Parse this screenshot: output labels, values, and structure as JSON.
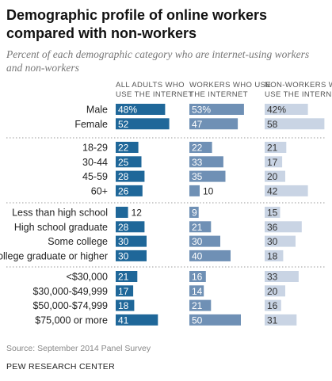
{
  "title": "Demographic profile of online workers compared with non-workers",
  "subtitle": "Percent of each demographic category who are internet-using workers and non-workers",
  "columns": [
    "ALL ADULTS WHO USE THE INTERNET",
    "WORKERS WHO USE THE INTERNET",
    "NON-WORKERS WHO USE THE INTERNET"
  ],
  "colors": {
    "all_adults": "#1f6799",
    "workers": "#6f90b5",
    "non_workers": "#c9d4e4"
  },
  "source": "Source: September 2014 Panel Survey",
  "org": "PEW RESEARCH CENTER",
  "chart_data": {
    "type": "bar",
    "title": "Demographic profile of online workers compared with non-workers",
    "subtitle": "Percent of each demographic category who are internet-using workers and non-workers",
    "series": [
      {
        "name": "ALL ADULTS WHO USE THE INTERNET"
      },
      {
        "name": "WORKERS WHO USE THE INTERNET"
      },
      {
        "name": "NON-WORKERS WHO USE THE INTERNET"
      }
    ],
    "groups": [
      {
        "rows": [
          {
            "label": "Male",
            "values": [
              48,
              53,
              42
            ],
            "labels": [
              "48%",
              "53%",
              "42%"
            ]
          },
          {
            "label": "Female",
            "values": [
              52,
              47,
              58
            ],
            "labels": [
              "52",
              "47",
              "58"
            ]
          }
        ]
      },
      {
        "rows": [
          {
            "label": "18-29",
            "values": [
              22,
              22,
              21
            ],
            "labels": [
              "22",
              "22",
              "21"
            ]
          },
          {
            "label": "30-44",
            "values": [
              25,
              33,
              17
            ],
            "labels": [
              "25",
              "33",
              "17"
            ]
          },
          {
            "label": "45-59",
            "values": [
              28,
              35,
              20
            ],
            "labels": [
              "28",
              "35",
              "20"
            ]
          },
          {
            "label": "60+",
            "values": [
              26,
              10,
              42
            ],
            "labels": [
              "26",
              "10",
              "42"
            ]
          }
        ]
      },
      {
        "rows": [
          {
            "label": "Less than high school",
            "values": [
              12,
              9,
              15
            ],
            "labels": [
              "12",
              "9",
              "15"
            ]
          },
          {
            "label": "High school graduate",
            "values": [
              28,
              21,
              36
            ],
            "labels": [
              "28",
              "21",
              "36"
            ]
          },
          {
            "label": "Some college",
            "values": [
              30,
              30,
              30
            ],
            "labels": [
              "30",
              "30",
              "30"
            ]
          },
          {
            "label": "College graduate or higher",
            "values": [
              30,
              40,
              18
            ],
            "labels": [
              "30",
              "40",
              "18"
            ]
          }
        ]
      },
      {
        "rows": [
          {
            "label": "<$30,000",
            "values": [
              21,
              16,
              33
            ],
            "labels": [
              "21",
              "16",
              "33"
            ]
          },
          {
            "label": "$30,000-$49,999",
            "values": [
              17,
              14,
              20
            ],
            "labels": [
              "17",
              "14",
              "20"
            ]
          },
          {
            "label": "$50,000-$74,999",
            "values": [
              18,
              21,
              16
            ],
            "labels": [
              "18",
              "21",
              "16"
            ]
          },
          {
            "label": "$75,000 or more",
            "values": [
              41,
              50,
              31
            ],
            "labels": [
              "41",
              "50",
              "31"
            ]
          }
        ]
      }
    ]
  }
}
